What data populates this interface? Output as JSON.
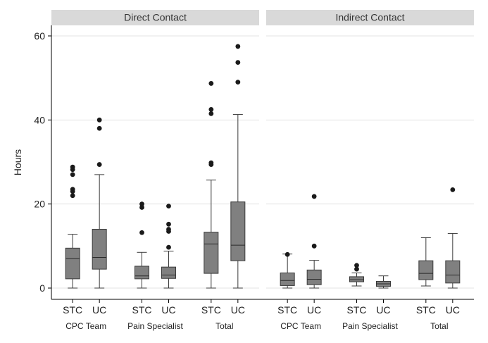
{
  "chart_data": {
    "type": "boxplot",
    "ylabel": "Hours",
    "ylim": [
      0,
      60
    ],
    "yticks": [
      0,
      20,
      40,
      60
    ],
    "grid": true,
    "panels": [
      {
        "title": "Direct Contact",
        "groups": [
          {
            "label": "CPC Team",
            "boxes": [
              {
                "category": "STC",
                "min": 0,
                "q1": 2.2,
                "median": 7,
                "q3": 9.5,
                "max": 12.8,
                "outliers": [
                  22,
                  23,
                  23.5,
                  27,
                  28.2,
                  28.8
                ]
              },
              {
                "category": "UC",
                "min": 0,
                "q1": 4.5,
                "median": 7.3,
                "q3": 14,
                "max": 27,
                "outliers": [
                  29.4,
                  38,
                  40
                ]
              }
            ]
          },
          {
            "label": "Pain Specialist",
            "boxes": [
              {
                "category": "STC",
                "min": 0,
                "q1": 2.2,
                "median": 2.9,
                "q3": 5.2,
                "max": 8.5,
                "outliers": [
                  13.2,
                  19.2,
                  20
                ]
              },
              {
                "category": "UC",
                "min": 0,
                "q1": 2.3,
                "median": 3.1,
                "q3": 5,
                "max": 8.8,
                "outliers": [
                  9.7,
                  13.5,
                  14,
                  15.2,
                  19.5
                ]
              }
            ]
          },
          {
            "label": "Total",
            "boxes": [
              {
                "category": "STC",
                "min": 0,
                "q1": 3.5,
                "median": 10.5,
                "q3": 13.3,
                "max": 25.7,
                "outliers": [
                  29.4,
                  29.8,
                  41.5,
                  42.5,
                  48.7
                ]
              },
              {
                "category": "UC",
                "min": 0,
                "q1": 6.5,
                "median": 10.2,
                "q3": 20.5,
                "max": 41.3,
                "outliers": [
                  49,
                  53.7,
                  57.5
                ]
              }
            ]
          }
        ]
      },
      {
        "title": "Indirect Contact",
        "groups": [
          {
            "label": "CPC Team",
            "boxes": [
              {
                "category": "STC",
                "min": 0,
                "q1": 0.6,
                "median": 1.8,
                "q3": 3.6,
                "max": 8.1,
                "outliers": [
                  8
                ]
              },
              {
                "category": "UC",
                "min": 0,
                "q1": 0.8,
                "median": 2.1,
                "q3": 4.3,
                "max": 6.6,
                "outliers": [
                  10,
                  21.8
                ]
              }
            ]
          },
          {
            "label": "Pain Specialist",
            "boxes": [
              {
                "category": "STC",
                "min": 0.5,
                "q1": 1.5,
                "median": 2,
                "q3": 2.7,
                "max": 3.6,
                "outliers": [
                  4.5,
                  5.4
                ]
              },
              {
                "category": "UC",
                "min": 0,
                "q1": 0.4,
                "median": 1,
                "q3": 1.6,
                "max": 2.9,
                "outliers": []
              }
            ]
          },
          {
            "label": "Total",
            "boxes": [
              {
                "category": "STC",
                "min": 0.5,
                "q1": 2,
                "median": 3.5,
                "q3": 6.5,
                "max": 12,
                "outliers": []
              },
              {
                "category": "UC",
                "min": 0,
                "q1": 1.2,
                "median": 3.1,
                "q3": 6.5,
                "max": 13,
                "outliers": [
                  23.4
                ]
              }
            ]
          }
        ]
      }
    ]
  }
}
